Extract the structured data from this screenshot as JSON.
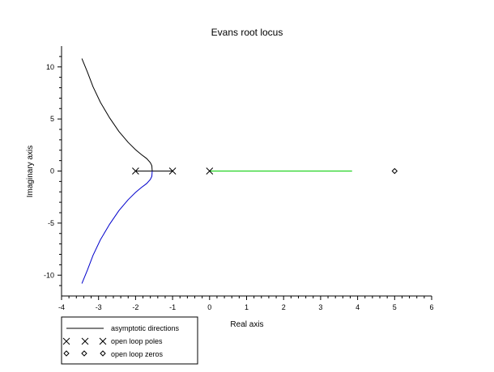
{
  "chart_data": {
    "type": "line",
    "title": "Evans root locus",
    "xlabel": "Real axis",
    "ylabel": "Imaginary axis",
    "xlim": [
      -4,
      6
    ],
    "ylim": [
      -12,
      12
    ],
    "x_ticks": [
      -4,
      -3,
      -2,
      -1,
      0,
      1,
      2,
      3,
      4,
      5,
      6
    ],
    "y_ticks": [
      -10,
      -5,
      0,
      5,
      10
    ],
    "grid": false,
    "legend_position": "bottom-left",
    "series": [
      {
        "color": "#000000",
        "points": [
          [
            -2,
            0
          ],
          [
            -1.55,
            0
          ]
        ]
      },
      {
        "color": "#000000",
        "points": [
          [
            -1,
            0
          ],
          [
            -1.55,
            0
          ]
        ]
      },
      {
        "color": "#000000",
        "points": [
          [
            -1.55,
            0
          ],
          [
            -1.56,
            0.5
          ],
          [
            -1.6,
            0.8
          ],
          [
            -1.7,
            1.2
          ],
          [
            -1.85,
            1.6
          ],
          [
            -2.0,
            2.05
          ],
          [
            -2.2,
            2.75
          ],
          [
            -2.45,
            3.8
          ],
          [
            -2.7,
            5.1
          ],
          [
            -2.95,
            6.6
          ],
          [
            -3.15,
            8.1
          ],
          [
            -3.3,
            9.5
          ],
          [
            -3.45,
            10.8
          ]
        ]
      },
      {
        "color": "#0000cc",
        "points": [
          [
            -1.55,
            0
          ],
          [
            -1.56,
            -0.5
          ],
          [
            -1.6,
            -0.8
          ],
          [
            -1.7,
            -1.2
          ],
          [
            -1.85,
            -1.6
          ],
          [
            -2.0,
            -2.05
          ],
          [
            -2.2,
            -2.75
          ],
          [
            -2.45,
            -3.8
          ],
          [
            -2.7,
            -5.1
          ],
          [
            -2.95,
            -6.6
          ],
          [
            -3.15,
            -8.1
          ],
          [
            -3.3,
            -9.5
          ],
          [
            -3.45,
            -10.8
          ]
        ]
      },
      {
        "color": "#00cc00",
        "points": [
          [
            0,
            0
          ],
          [
            3.85,
            0
          ]
        ]
      }
    ],
    "poles": [
      [
        -2,
        0
      ],
      [
        -1,
        0
      ],
      [
        0,
        0
      ]
    ],
    "zeros": [
      [
        5,
        0
      ]
    ],
    "legend": [
      {
        "marker": "line",
        "label": "asymptotic directions"
      },
      {
        "marker": "x",
        "label": "open loop poles"
      },
      {
        "marker": "diamond",
        "label": "open loop zeros"
      }
    ]
  }
}
